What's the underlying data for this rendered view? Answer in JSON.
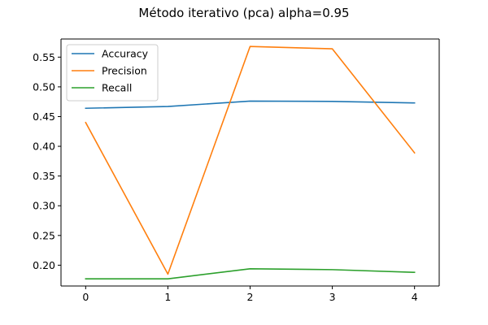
{
  "chart_data": {
    "type": "line",
    "title": "Método iterativo (pca) alpha=0.95",
    "xlabel": "",
    "ylabel": "",
    "x": [
      0,
      1,
      2,
      3,
      4
    ],
    "xticks": [
      "0",
      "1",
      "2",
      "3",
      "4"
    ],
    "yticks": [
      "0.20",
      "0.25",
      "0.30",
      "0.35",
      "0.40",
      "0.45",
      "0.50",
      "0.55"
    ],
    "xlim": [
      -0.3,
      4.3
    ],
    "ylim": [
      0.165,
      0.5805
    ],
    "grid": false,
    "legend_position": "upper-left",
    "series": [
      {
        "name": "Accuracy",
        "color": "#1f77b4",
        "values": [
          0.464,
          0.467,
          0.476,
          0.4755,
          0.473
        ]
      },
      {
        "name": "Precision",
        "color": "#ff7f0e",
        "values": [
          0.44,
          0.185,
          0.568,
          0.564,
          0.389
        ]
      },
      {
        "name": "Recall",
        "color": "#2ca02c",
        "values": [
          0.177,
          0.177,
          0.194,
          0.1925,
          0.188
        ]
      }
    ]
  }
}
